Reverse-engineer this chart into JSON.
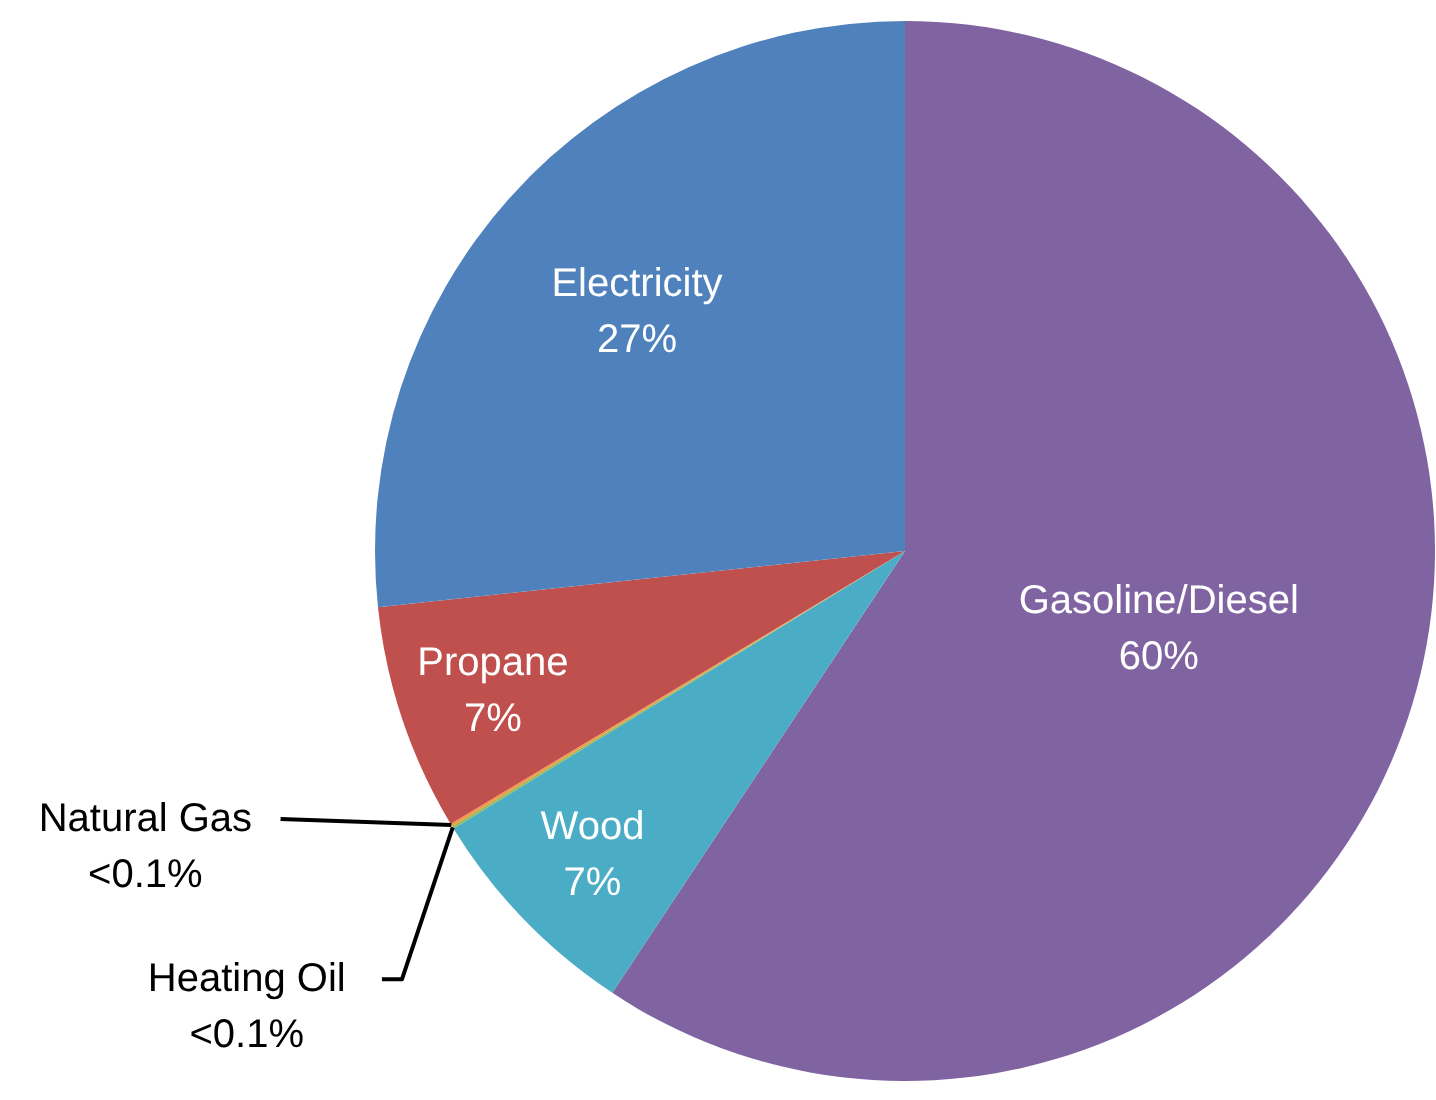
{
  "chart_data": {
    "type": "pie",
    "categories": [
      "Gasoline/Diesel",
      "Wood",
      "Heating Oil",
      "Natural Gas",
      "Propane",
      "Electricity"
    ],
    "values": [
      60,
      7,
      0.08,
      0.08,
      7,
      27
    ],
    "value_labels": [
      "60%",
      "7%",
      "<0.1%",
      "<0.1%",
      "7%",
      "27%"
    ],
    "colors": [
      "#8064a2",
      "#4bacc6",
      "#9bbb59",
      "#f79646",
      "#c0504d",
      "#4f81bd"
    ]
  }
}
